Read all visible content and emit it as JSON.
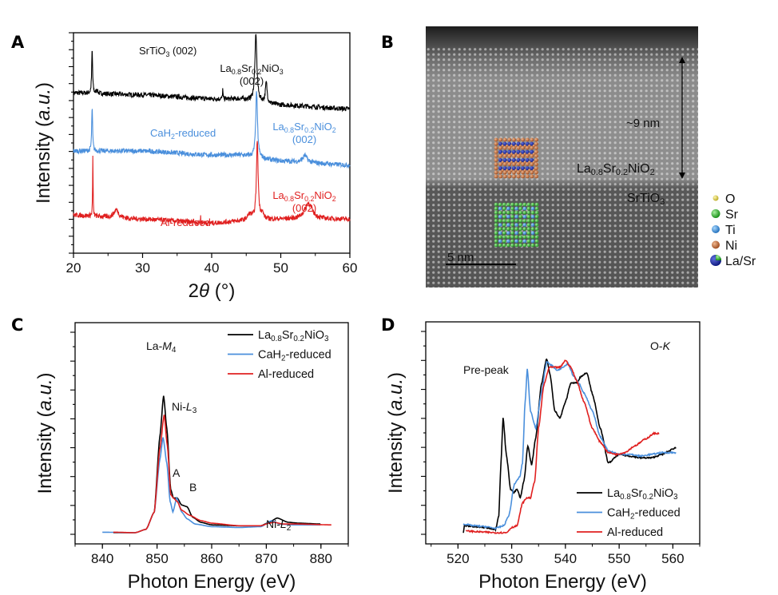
{
  "figure": {
    "panels": [
      "A",
      "B",
      "C",
      "D"
    ]
  },
  "image_panel": {
    "label": "B",
    "film_label": "La0.8Sr0.2NiO2",
    "substrate_label": "SrTiO3",
    "thickness_label": "~9 nm",
    "scale_bar_label": "5 nm",
    "legend": [
      {
        "name": "O",
        "color": "#d9c83a"
      },
      {
        "name": "Sr",
        "color": "#2bb52b"
      },
      {
        "name": "Ti",
        "color": "#3a8ed8"
      },
      {
        "name": "Ni",
        "color": "#c8652e"
      },
      {
        "name": "La/Sr",
        "color": "#1a2a9a"
      }
    ]
  },
  "chart_data": [
    {
      "panel": "A",
      "type": "line",
      "title": "",
      "xlabel": "2θ (°)",
      "ylabel": "Intensity (a.u.)",
      "xlim": [
        20,
        60
      ],
      "xticks": [
        20,
        30,
        40,
        50,
        60
      ],
      "ylim": [
        0,
        1
      ],
      "yticks_labeled": false,
      "grid": false,
      "series": [
        {
          "name": "La0.8Sr0.2NiO3",
          "color": "#000000",
          "offset": 0.66,
          "baseline": [
            [
              20,
              0.08
            ],
            [
              30,
              0.07
            ],
            [
              40,
              0.05
            ],
            [
              44,
              0.05
            ],
            [
              50,
              0.02
            ],
            [
              60,
              0.0
            ]
          ],
          "peaks": [
            [
              22.7,
              0.22,
              0.15
            ],
            [
              41.6,
              0.05,
              0.08
            ],
            [
              46.4,
              0.33,
              0.35
            ],
            [
              47.9,
              0.1,
              0.3
            ],
            [
              23.4,
              0.02,
              0.2
            ]
          ],
          "noise": 0.012
        },
        {
          "name": "CaH2-reduced",
          "color": "#4a8fdc",
          "offset": 0.38,
          "baseline": [
            [
              20,
              0.07
            ],
            [
              30,
              0.07
            ],
            [
              40,
              0.05
            ],
            [
              44,
              0.05
            ],
            [
              50,
              0.02
            ],
            [
              60,
              0.0
            ]
          ],
          "peaks": [
            [
              22.7,
              0.22,
              0.15
            ],
            [
              46.5,
              0.33,
              0.3
            ],
            [
              53.5,
              0.035,
              0.7
            ]
          ],
          "noise": 0.012
        },
        {
          "name": "Al-reduced",
          "color": "#e02020",
          "offset": 0.07,
          "baseline": [
            [
              20,
              0.06
            ],
            [
              30,
              0.04
            ],
            [
              40,
              0.02
            ],
            [
              44,
              0.03
            ],
            [
              50,
              0.04
            ],
            [
              60,
              0.04
            ]
          ],
          "peaks": [
            [
              22.8,
              0.3,
              0.08
            ],
            [
              26.2,
              0.04,
              0.8
            ],
            [
              37.4,
              0.025,
              0.05
            ],
            [
              38.4,
              0.03,
              0.05
            ],
            [
              46.6,
              0.39,
              0.3
            ],
            [
              45.5,
              0.03,
              0.8
            ],
            [
              47.3,
              0.03,
              0.5
            ],
            [
              54.0,
              0.08,
              1.3
            ]
          ],
          "noise": 0.012
        }
      ],
      "annotations": [
        {
          "text": "SrTiO3 (002)",
          "color": "#111111"
        },
        {
          "text": "La0.8Sr0.2NiO3 (002)",
          "color": "#111111"
        },
        {
          "text": "CaH2-reduced",
          "color": "#4a8fdc"
        },
        {
          "text": "La0.8Sr0.2NiO2 (002)",
          "color": "#4a8fdc"
        },
        {
          "text": "Al-reduced",
          "color": "#e02020"
        },
        {
          "text": "La0.8Sr0.2NiO2 (002)",
          "color": "#e02020"
        }
      ]
    },
    {
      "panel": "C",
      "type": "line",
      "title": "",
      "xlabel": "Photon Energy (eV)",
      "ylabel": "Intensity (a.u.)",
      "xlim": [
        835,
        885
      ],
      "xticks": [
        840,
        850,
        860,
        870,
        880
      ],
      "ylim": [
        0,
        1
      ],
      "yticks_labeled": false,
      "grid": false,
      "legend_position": "top-right",
      "series": [
        {
          "name": "La0.8Sr0.2NiO3",
          "color": "#000000",
          "points": [
            [
              842,
              0.0
            ],
            [
              846,
              0.0
            ],
            [
              848,
              0.02
            ],
            [
              849.5,
              0.12
            ],
            [
              850.5,
              0.55
            ],
            [
              851.2,
              0.79
            ],
            [
              851.8,
              0.6
            ],
            [
              852.5,
              0.25
            ],
            [
              853,
              0.2
            ],
            [
              853.7,
              0.2
            ],
            [
              854.5,
              0.16
            ],
            [
              855.5,
              0.15
            ],
            [
              856.5,
              0.09
            ],
            [
              858,
              0.06
            ],
            [
              860,
              0.045
            ],
            [
              865,
              0.04
            ],
            [
              869,
              0.04
            ],
            [
              870.5,
              0.06
            ],
            [
              872,
              0.085
            ],
            [
              874,
              0.06
            ],
            [
              876,
              0.055
            ],
            [
              880,
              0.05
            ]
          ]
        },
        {
          "name": "CaH2-reduced",
          "color": "#4a8fdc",
          "points": [
            [
              840,
              0.003
            ],
            [
              846,
              0.0
            ],
            [
              848,
              0.02
            ],
            [
              849.5,
              0.12
            ],
            [
              850.5,
              0.42
            ],
            [
              851.1,
              0.55
            ],
            [
              851.8,
              0.4
            ],
            [
              852.4,
              0.18
            ],
            [
              852.9,
              0.12
            ],
            [
              853.6,
              0.2
            ],
            [
              854.5,
              0.12
            ],
            [
              855.5,
              0.08
            ],
            [
              857,
              0.05
            ],
            [
              860,
              0.035
            ],
            [
              865,
              0.03
            ],
            [
              869,
              0.035
            ],
            [
              871,
              0.07
            ],
            [
              872.5,
              0.05
            ],
            [
              875,
              0.045
            ],
            [
              880,
              0.045
            ]
          ]
        },
        {
          "name": "Al-reduced",
          "color": "#e02020",
          "points": [
            [
              842,
              0.003
            ],
            [
              846,
              0.0
            ],
            [
              848,
              0.02
            ],
            [
              849.5,
              0.12
            ],
            [
              850.5,
              0.48
            ],
            [
              851.3,
              0.68
            ],
            [
              851.9,
              0.5
            ],
            [
              852.5,
              0.22
            ],
            [
              853,
              0.2
            ],
            [
              853.7,
              0.18
            ],
            [
              854.5,
              0.13
            ],
            [
              856,
              0.1
            ],
            [
              858,
              0.07
            ],
            [
              860,
              0.055
            ],
            [
              865,
              0.04
            ],
            [
              869,
              0.04
            ],
            [
              870.5,
              0.055
            ],
            [
              871.5,
              0.06
            ],
            [
              873,
              0.05
            ],
            [
              876,
              0.05
            ],
            [
              882,
              0.045
            ]
          ]
        }
      ],
      "annotations": [
        "La-M4",
        "Ni-L3",
        "A",
        "B",
        "Ni-L2"
      ]
    },
    {
      "panel": "D",
      "type": "line",
      "title": "",
      "xlabel": "Photon Energy (eV)",
      "ylabel": "Intensity (a.u.)",
      "xlim": [
        514,
        565
      ],
      "xticks": [
        520,
        530,
        540,
        550,
        560
      ],
      "ylim": [
        0,
        1
      ],
      "yticks_labeled": false,
      "grid": false,
      "legend_position": "bottom-right",
      "series": [
        {
          "name": "La0.8Sr0.2NiO3",
          "color": "#000000",
          "points": [
            [
              521,
              0.0
            ],
            [
              521.2,
              0.04
            ],
            [
              523,
              0.035
            ],
            [
              525,
              0.03
            ],
            [
              527,
              0.02
            ],
            [
              527.6,
              0.1
            ],
            [
              528,
              0.4
            ],
            [
              528.4,
              0.66
            ],
            [
              529,
              0.45
            ],
            [
              529.8,
              0.25
            ],
            [
              530.4,
              0.23
            ],
            [
              531,
              0.25
            ],
            [
              531.6,
              0.2
            ],
            [
              532.3,
              0.3
            ],
            [
              533,
              0.5
            ],
            [
              533.7,
              0.39
            ],
            [
              534.5,
              0.55
            ],
            [
              535.5,
              0.85
            ],
            [
              536.5,
              1.0
            ],
            [
              537.2,
              0.9
            ],
            [
              538,
              0.7
            ],
            [
              539,
              0.66
            ],
            [
              540,
              0.75
            ],
            [
              541,
              0.86
            ],
            [
              542,
              0.86
            ],
            [
              543,
              0.9
            ],
            [
              544,
              0.92
            ],
            [
              545,
              0.8
            ],
            [
              546.5,
              0.6
            ],
            [
              548,
              0.4
            ],
            [
              550,
              0.45
            ],
            [
              552,
              0.44
            ],
            [
              554,
              0.43
            ],
            [
              556,
              0.43
            ],
            [
              558,
              0.45
            ],
            [
              560.7,
              0.49
            ]
          ]
        },
        {
          "name": "CaH2-reduced",
          "color": "#4a8fdc",
          "points": [
            [
              521,
              0.05
            ],
            [
              523,
              0.04
            ],
            [
              525,
              0.035
            ],
            [
              527,
              0.025
            ],
            [
              528.5,
              0.04
            ],
            [
              529.5,
              0.1
            ],
            [
              530.5,
              0.28
            ],
            [
              531.5,
              0.32
            ],
            [
              532,
              0.4
            ],
            [
              532.5,
              0.75
            ],
            [
              532.9,
              0.94
            ],
            [
              533.5,
              0.7
            ],
            [
              534.5,
              0.6
            ],
            [
              535.5,
              0.8
            ],
            [
              536.5,
              0.98
            ],
            [
              537.5,
              0.96
            ],
            [
              538.5,
              0.93
            ],
            [
              539.5,
              0.95
            ],
            [
              540.5,
              0.97
            ],
            [
              541.5,
              0.9
            ],
            [
              542.5,
              0.86
            ],
            [
              543.5,
              0.8
            ],
            [
              545,
              0.7
            ],
            [
              546.5,
              0.55
            ],
            [
              548,
              0.47
            ],
            [
              550,
              0.45
            ],
            [
              552,
              0.45
            ],
            [
              554,
              0.44
            ],
            [
              556,
              0.45
            ],
            [
              558,
              0.46
            ],
            [
              560.7,
              0.46
            ]
          ]
        },
        {
          "name": "Al-reduced",
          "color": "#e02020",
          "points": [
            [
              521.5,
              0.01
            ],
            [
              524,
              0.005
            ],
            [
              527,
              0.0
            ],
            [
              529,
              0.0
            ],
            [
              530,
              0.03
            ],
            [
              531,
              0.04
            ],
            [
              532,
              0.17
            ],
            [
              532.8,
              0.2
            ],
            [
              533.5,
              0.2
            ],
            [
              534.3,
              0.3
            ],
            [
              535,
              0.6
            ],
            [
              536,
              0.85
            ],
            [
              537,
              0.95
            ],
            [
              538,
              0.95
            ],
            [
              539,
              0.95
            ],
            [
              540,
              0.99
            ],
            [
              541,
              0.95
            ],
            [
              542,
              0.88
            ],
            [
              543.5,
              0.75
            ],
            [
              545,
              0.6
            ],
            [
              546.5,
              0.52
            ],
            [
              548,
              0.46
            ],
            [
              549.5,
              0.45
            ],
            [
              551,
              0.46
            ],
            [
              553,
              0.5
            ],
            [
              555,
              0.54
            ],
            [
              556.5,
              0.57
            ],
            [
              557.5,
              0.57
            ]
          ]
        }
      ],
      "annotations": [
        "Pre-peak",
        "O-K"
      ]
    }
  ]
}
